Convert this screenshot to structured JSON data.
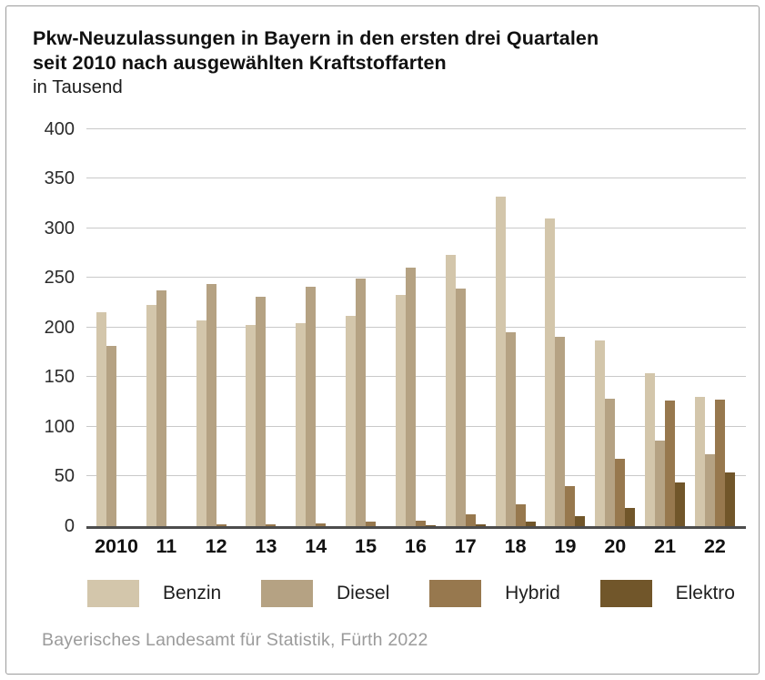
{
  "header": {
    "title_line1": "Pkw-Neuzulassungen in Bayern in den ersten drei Quartalen",
    "title_line2": "seit 2010 nach ausgewählten Kraftstoffarten",
    "subtitle": "in Tausend"
  },
  "chart_data": {
    "type": "bar",
    "title": "Pkw-Neuzulassungen in Bayern in den ersten drei Quartalen seit 2010 nach ausgewählten Kraftstoffarten",
    "ylabel": "in Tausend",
    "categories": [
      "2010",
      "11",
      "12",
      "13",
      "14",
      "15",
      "16",
      "17",
      "18",
      "19",
      "20",
      "21",
      "22"
    ],
    "series": [
      {
        "name": "Benzin",
        "color": "#d3c6ab",
        "values": [
          217,
          224,
          209,
          204,
          206,
          213,
          234,
          275,
          334,
          312,
          188,
          155,
          131
        ]
      },
      {
        "name": "Diesel",
        "color": "#b5a283",
        "values": [
          183,
          239,
          246,
          233,
          243,
          251,
          262,
          241,
          197,
          192,
          129,
          87,
          73
        ]
      },
      {
        "name": "Hybrid",
        "color": "#97784e",
        "values": [
          0,
          0,
          2,
          2,
          3,
          4,
          5,
          12,
          22,
          40,
          68,
          127,
          128
        ]
      },
      {
        "name": "Elektro",
        "color": "#71562a",
        "values": [
          0,
          0,
          0,
          0,
          0,
          0,
          1,
          2,
          4,
          10,
          18,
          44,
          54
        ]
      }
    ],
    "ylim": [
      0,
      400
    ],
    "ytick_step": 50,
    "grid": true,
    "legend_position": "bottom",
    "colors": {
      "gridline": "#c9c9c9",
      "axis_line": "#4c4c4c"
    }
  },
  "footer": {
    "source": "Bayerisches Landesamt für Statistik, Fürth 2022"
  }
}
